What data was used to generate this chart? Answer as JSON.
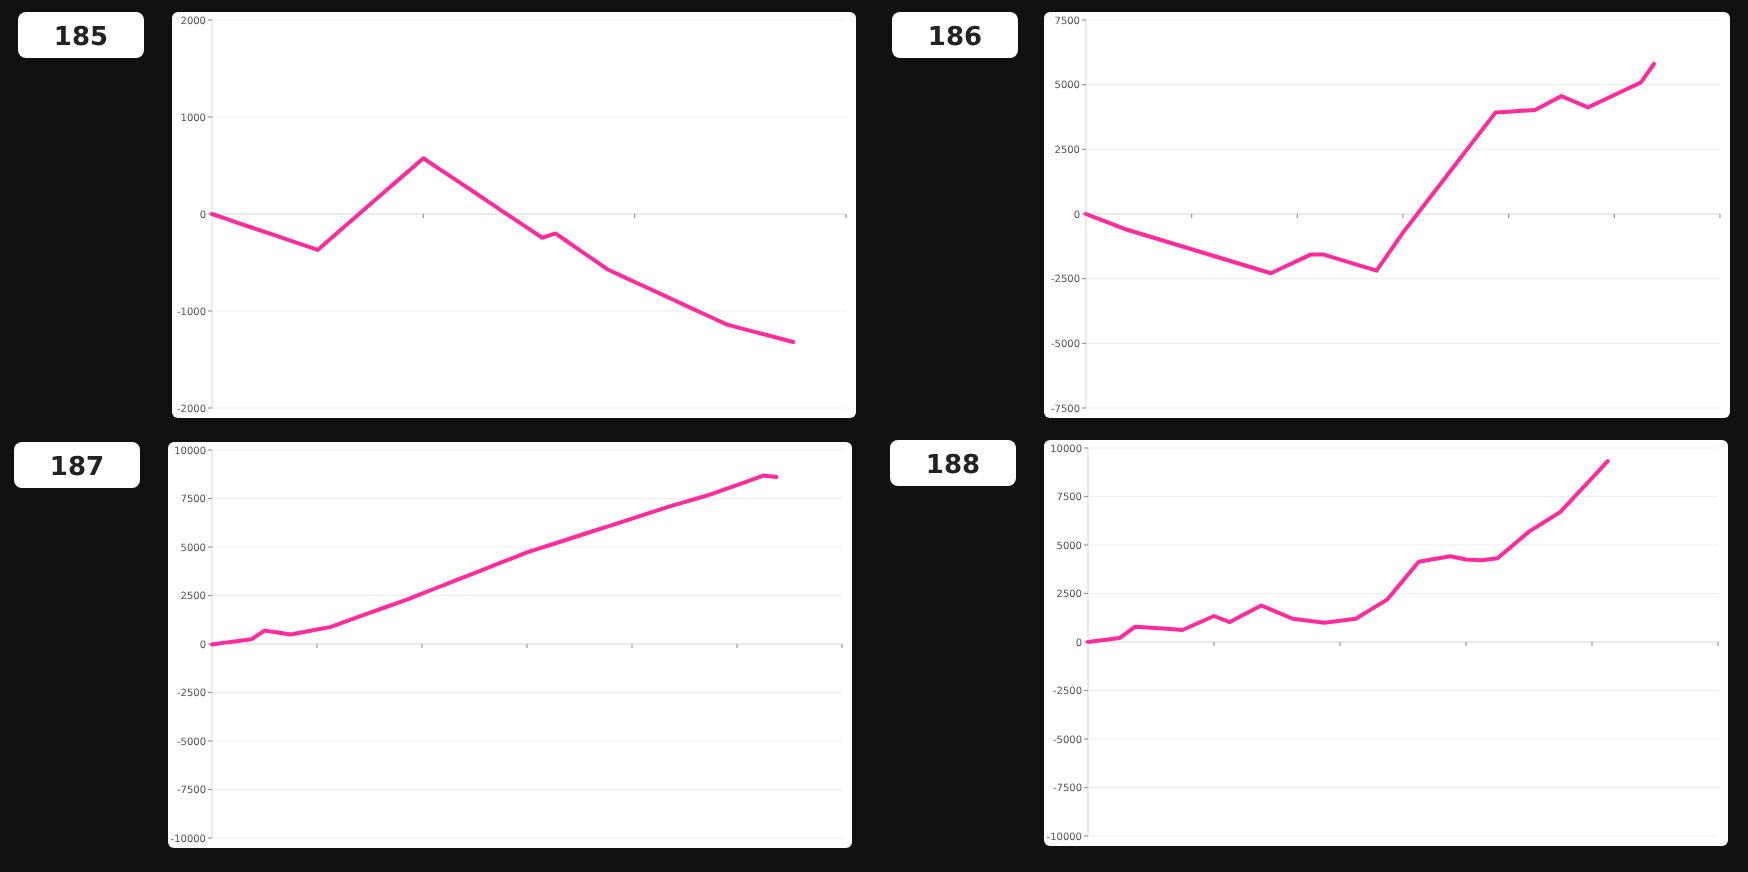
{
  "chart_data": [
    {
      "type": "line",
      "title": "185",
      "categories": [
        null,
        null,
        null,
        null,
        null,
        null,
        null,
        null,
        null,
        null,
        null,
        null,
        null,
        null,
        null,
        null,
        null,
        null,
        null,
        null,
        null,
        null,
        null,
        null,
        null,
        null,
        null,
        null,
        null,
        null,
        null,
        null,
        null,
        null,
        null,
        null,
        null,
        null,
        null,
        null,
        null,
        null,
        null,
        null,
        null
      ],
      "series": [
        {
          "color": "#ff2a9c",
          "values": [
            0,
            -46,
            -93,
            -139,
            -185,
            -231,
            -278,
            -324,
            -370,
            -252,
            -134,
            -16,
            103,
            221,
            339,
            457,
            575,
            484,
            393,
            302,
            211,
            120,
            28,
            -63,
            -154,
            -245,
            -200,
            -294,
            -388,
            -481,
            -575,
            -638,
            -701,
            -763,
            -826,
            -889,
            -952,
            -1015,
            -1077,
            -1140,
            -1176,
            -1212,
            -1248,
            -1284,
            -1320
          ]
        }
      ],
      "ylim": [
        -2000,
        2000
      ],
      "yticks": [
        -2000,
        -1000,
        0,
        1000,
        2000
      ],
      "grid": "y",
      "marker": "none",
      "line_style": "solid"
    },
    {
      "type": "line",
      "title": "186",
      "categories": [
        null,
        null,
        null,
        null,
        null,
        null,
        null,
        null,
        null,
        null,
        null,
        null,
        null,
        null,
        null,
        null,
        null,
        null,
        null,
        null,
        null,
        null,
        null,
        null,
        null,
        null,
        null,
        null,
        null,
        null,
        null,
        null,
        null,
        null,
        null,
        null,
        null,
        null,
        null,
        null,
        null,
        null,
        null,
        null
      ],
      "series": [
        {
          "color": "#ff2a9c",
          "values": [
            0,
            -197,
            -393,
            -590,
            -745,
            -899,
            -1054,
            -1208,
            -1363,
            -1517,
            -1672,
            -1826,
            -1981,
            -2135,
            -2290,
            -2050,
            -1810,
            -1570,
            -1570,
            -1725,
            -1880,
            -2035,
            -2190,
            -1455,
            -720,
            -57,
            606,
            1269,
            1932,
            2594,
            3257,
            3920,
            3953,
            3987,
            4020,
            4290,
            4560,
            4340,
            4120,
            4360,
            4600,
            4840,
            5080,
            5800
          ]
        }
      ],
      "ylim": [
        -7500,
        7500
      ],
      "yticks": [
        -7500,
        -5000,
        -2500,
        0,
        2500,
        5000,
        7500
      ],
      "grid": "y",
      "marker": "none",
      "line_style": "solid"
    },
    {
      "type": "line",
      "title": "187",
      "categories": [
        null,
        null,
        null,
        null,
        null,
        null,
        null,
        null,
        null,
        null,
        null,
        null,
        null,
        null,
        null,
        null,
        null,
        null,
        null,
        null,
        null,
        null,
        null,
        null,
        null,
        null,
        null,
        null,
        null,
        null,
        null,
        null,
        null,
        null,
        null,
        null,
        null,
        null,
        null,
        null,
        null,
        null,
        null,
        null
      ],
      "series": [
        {
          "color": "#ff2a9c",
          "values": [
            -30,
            70,
            155,
            240,
            690,
            590,
            490,
            617,
            743,
            870,
            1113,
            1357,
            1600,
            1843,
            2087,
            2330,
            2596,
            2861,
            3127,
            3392,
            3658,
            3924,
            4189,
            4455,
            4720,
            4938,
            5156,
            5375,
            5593,
            5811,
            6029,
            6247,
            6465,
            6684,
            6902,
            7120,
            7317,
            7513,
            7710,
            7953,
            8195,
            8438,
            8680,
            8610
          ]
        }
      ],
      "ylim": [
        -10000,
        10000
      ],
      "yticks": [
        -10000,
        -7500,
        -5000,
        -2500,
        0,
        2500,
        5000,
        7500,
        10000
      ],
      "grid": "y",
      "marker": "none",
      "line_style": "solid"
    },
    {
      "type": "line",
      "title": "188",
      "categories": [
        null,
        null,
        null,
        null,
        null,
        null,
        null,
        null,
        null,
        null,
        null,
        null,
        null,
        null,
        null,
        null,
        null,
        null,
        null,
        null,
        null,
        null,
        null,
        null,
        null,
        null,
        null,
        null,
        null,
        null,
        null,
        null,
        null,
        null
      ],
      "series": [
        {
          "color": "#ff2a9c",
          "values": [
            0,
            103,
            205,
            790,
            733,
            677,
            620,
            980,
            1340,
            1030,
            1455,
            1880,
            1540,
            1200,
            1095,
            990,
            1095,
            1200,
            1695,
            2190,
            3165,
            4140,
            4280,
            4420,
            4250,
            4210,
            4320,
            5005,
            5690,
            6200,
            6710,
            7580,
            8450,
            9320
          ]
        }
      ],
      "ylim": [
        -10000,
        10000
      ],
      "yticks": [
        -10000,
        -7500,
        -5000,
        -2500,
        0,
        2500,
        5000,
        7500,
        10000
      ],
      "grid": "y",
      "marker": "none",
      "line_style": "solid"
    }
  ]
}
